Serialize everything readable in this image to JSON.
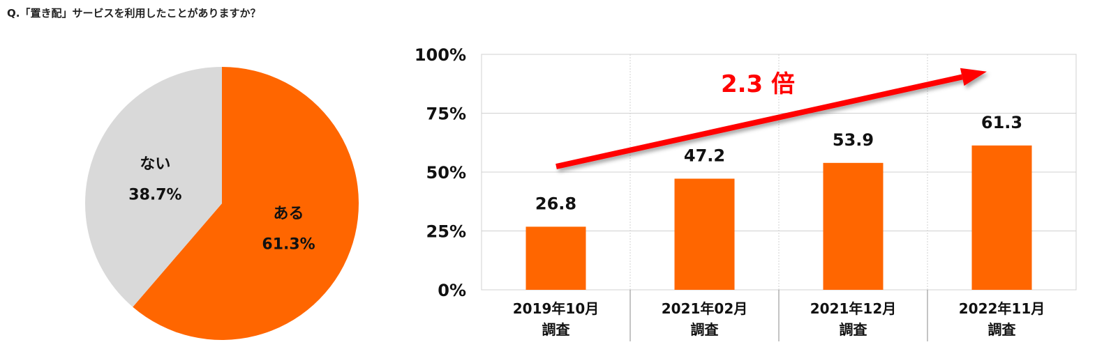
{
  "question": "Q.「置き配」サービスを利用したことがありますか？",
  "colors": {
    "accent": "#ff6600",
    "gray": "#d9d9d9",
    "arrow": "#ff0000",
    "grid": "#d0d0d0",
    "text": "#111111"
  },
  "chart_data": [
    {
      "type": "pie",
      "title": "",
      "slices": [
        {
          "label": "ある",
          "value": 61.3,
          "value_label": "61.3%",
          "color": "#ff6600"
        },
        {
          "label": "ない",
          "value": 38.7,
          "value_label": "38.7%",
          "color": "#d9d9d9"
        }
      ]
    },
    {
      "type": "bar",
      "title": "",
      "categories": [
        {
          "line1": "2019年10月",
          "line2": "調査"
        },
        {
          "line1": "2021年02月",
          "line2": "調査"
        },
        {
          "line1": "2021年12月",
          "line2": "調査"
        },
        {
          "line1": "2022年11月",
          "line2": "調査"
        }
      ],
      "values": [
        26.8,
        47.2,
        53.9,
        61.3
      ],
      "value_labels": [
        "26.8",
        "47.2",
        "53.9",
        "61.3"
      ],
      "ylim": [
        0,
        100
      ],
      "yticks": [
        {
          "value": 0,
          "label": "0%"
        },
        {
          "value": 25,
          "label": "25%"
        },
        {
          "value": 50,
          "label": "50%"
        },
        {
          "value": 75,
          "label": "75%"
        },
        {
          "value": 100,
          "label": "100%"
        }
      ],
      "annotation": "2.3 倍",
      "color": "#ff6600",
      "grid": true
    }
  ]
}
